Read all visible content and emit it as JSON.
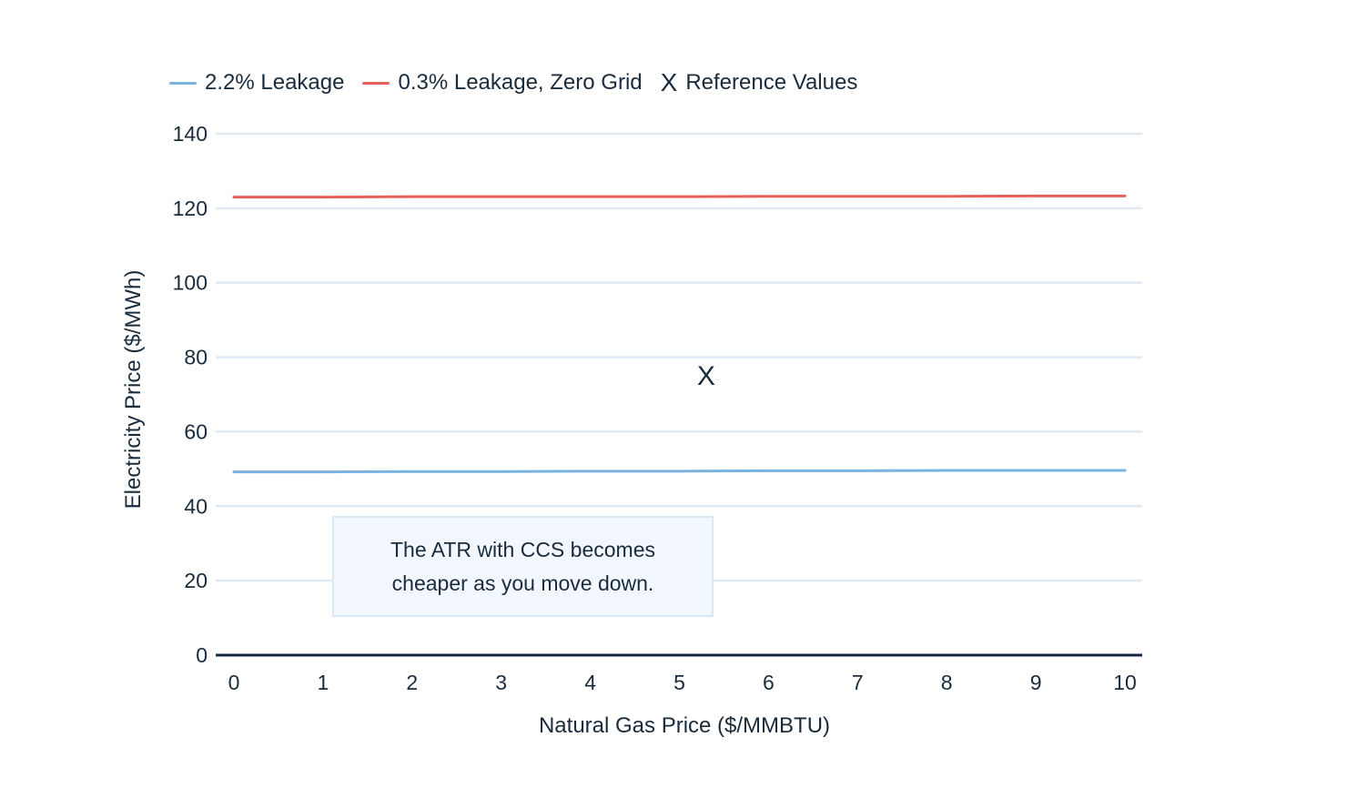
{
  "chart_data": {
    "type": "line",
    "title": "",
    "xlabel": "Natural Gas Price ($/MMBTU)",
    "ylabel": "Electricity Price ($/MWh)",
    "xlim": [
      0,
      10
    ],
    "ylim": [
      0,
      140
    ],
    "xticks": [
      "0",
      "1",
      "2",
      "3",
      "4",
      "5",
      "6",
      "7",
      "8",
      "9",
      "10"
    ],
    "yticks": [
      "0",
      "20",
      "40",
      "60",
      "80",
      "100",
      "120",
      "140"
    ],
    "grid": true,
    "legend_position": "top-left",
    "x": [
      0,
      1,
      2,
      3,
      4,
      5,
      6,
      7,
      8,
      9,
      10
    ],
    "series": [
      {
        "name": "2.2% Leakage",
        "color": "#7ab3e0",
        "values": [
          49.2,
          49.2,
          49.3,
          49.3,
          49.4,
          49.4,
          49.5,
          49.5,
          49.6,
          49.6,
          49.6
        ]
      },
      {
        "name": "0.3% Leakage, Zero Grid",
        "color": "#e8605a",
        "values": [
          123.0,
          123.0,
          123.1,
          123.1,
          123.1,
          123.1,
          123.2,
          123.2,
          123.2,
          123.3,
          123.3
        ]
      }
    ],
    "reference_points": {
      "name": "Reference Values",
      "marker": "X",
      "points": [
        {
          "x": 5.3,
          "y": 75
        }
      ]
    },
    "annotation": "The ATR with CCS becomes cheaper as you move down."
  },
  "colors": {
    "axis": "#13293d",
    "grid": "#dfeaf5",
    "text": "#1a2b3c",
    "annotation_bg": "#f2f7fd",
    "annotation_border": "#d9e8f6"
  }
}
